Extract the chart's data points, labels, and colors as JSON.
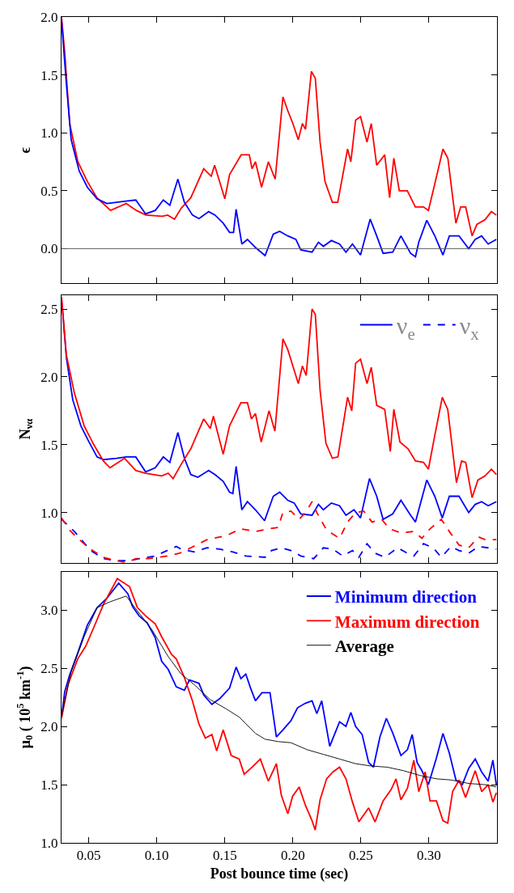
{
  "chart_data": [
    {
      "type": "line",
      "ylabel": "ϵ",
      "xlim": [
        0.03,
        0.35
      ],
      "ylim": [
        -0.3,
        2.0
      ],
      "tick_labels": "y",
      "xticks": [
        {
          "value": 0.05,
          "label": null
        },
        {
          "value": 0.1,
          "label": null
        },
        {
          "value": 0.15,
          "label": null
        },
        {
          "value": 0.2,
          "label": null
        },
        {
          "value": 0.25,
          "label": null
        },
        {
          "value": 0.3,
          "label": null
        }
      ],
      "yticks": [
        {
          "value": 0,
          "label": "0.0"
        },
        0.5,
        {
          "value": 1,
          "label": "1.0"
        },
        1.5,
        {
          "value": 2,
          "label": "2.0"
        }
      ],
      "ref_lines": [
        {
          "axis": "y",
          "value": 0,
          "color": "#606060"
        }
      ],
      "series": [
        {
          "color": "#ff0000",
          "x": [
            0.03,
            0.0324,
            0.036,
            0.042,
            0.049,
            0.056,
            0.066,
            0.0775,
            0.085,
            0.092,
            0.104,
            0.108,
            0.113,
            0.118,
            0.125,
            0.1345,
            0.14,
            0.1425,
            0.15,
            0.1535,
            0.162,
            0.168,
            0.17,
            0.1725,
            0.177,
            0.182,
            0.187,
            0.1927,
            0.1963,
            0.2,
            0.204,
            0.207,
            0.2093,
            0.2136,
            0.2165,
            0.22,
            0.2236,
            0.229,
            0.233,
            0.2402,
            0.2426,
            0.2461,
            0.2497,
            0.2545,
            0.2576,
            0.2616,
            0.2675,
            0.2711,
            0.2742,
            0.2782,
            0.2841,
            0.29,
            0.296,
            0.2996,
            0.3043,
            0.3103,
            0.3139,
            0.3198,
            0.3233,
            0.327,
            0.3317,
            0.3352,
            0.3412,
            0.3459,
            0.3495
          ],
          "values": [
            2.0,
            1.69,
            1.08,
            0.75,
            0.58,
            0.44,
            0.33,
            0.39,
            0.33,
            0.29,
            0.28,
            0.29,
            0.255,
            0.35,
            0.44,
            0.69,
            0.625,
            0.72,
            0.43,
            0.64,
            0.81,
            0.81,
            0.69,
            0.75,
            0.53,
            0.75,
            0.6,
            1.31,
            1.19,
            1.08,
            0.94,
            1.08,
            1.03,
            1.53,
            1.47,
            0.92,
            0.58,
            0.4,
            0.4,
            0.86,
            0.75,
            1.11,
            1.14,
            0.92,
            1.08,
            0.72,
            0.81,
            0.44,
            0.78,
            0.5,
            0.5,
            0.36,
            0.36,
            0.33,
            0.56,
            0.86,
            0.78,
            0.22,
            0.36,
            0.36,
            0.11,
            0.21,
            0.25,
            0.32,
            0.29
          ]
        },
        {
          "color": "#0000ff",
          "x": [
            0.03,
            0.0336,
            0.0371,
            0.043,
            0.049,
            0.0561,
            0.0633,
            0.0704,
            0.0775,
            0.0846,
            0.0918,
            0.0989,
            0.1048,
            0.1096,
            0.1155,
            0.1203,
            0.1262,
            0.131,
            0.1381,
            0.1428,
            0.1488,
            0.1535,
            0.1564,
            0.1583,
            0.1625,
            0.1666,
            0.1725,
            0.1796,
            0.1856,
            0.1903,
            0.1963,
            0.2022,
            0.2058,
            0.2141,
            0.2188,
            0.2224,
            0.2283,
            0.2343,
            0.239,
            0.2438,
            0.2497,
            0.2568,
            0.2616,
            0.2663,
            0.2734,
            0.2794,
            0.2865,
            0.2901,
            0.2925,
            0.2984,
            0.3043,
            0.3103,
            0.315,
            0.3221,
            0.3292,
            0.334,
            0.3387,
            0.3435,
            0.3495
          ],
          "values": [
            1.97,
            1.42,
            0.94,
            0.67,
            0.53,
            0.43,
            0.39,
            0.4,
            0.41,
            0.42,
            0.3,
            0.33,
            0.42,
            0.375,
            0.6,
            0.4,
            0.29,
            0.26,
            0.32,
            0.29,
            0.22,
            0.14,
            0.14,
            0.34,
            0.04,
            0.08,
            0.01,
            -0.06,
            0.125,
            0.15,
            0.11,
            0.08,
            -0.01,
            -0.03,
            0.055,
            0.02,
            0.07,
            0.04,
            -0.03,
            0.04,
            -0.055,
            0.255,
            0.11,
            -0.04,
            -0.03,
            0.11,
            -0.04,
            -0.07,
            0.055,
            0.245,
            0.11,
            -0.055,
            0.11,
            0.11,
            0.0,
            0.08,
            0.11,
            0.04,
            0.08
          ]
        }
      ]
    },
    {
      "type": "line",
      "ylabel": "N$_{να}$",
      "xlim": [
        0.03,
        0.35
      ],
      "ylim": [
        0.63,
        2.6
      ],
      "tick_labels": "y",
      "legend": "top right",
      "xticks": [
        {
          "value": 0.05,
          "label": null
        },
        {
          "value": 0.1,
          "label": null
        },
        {
          "value": 0.15,
          "label": null
        },
        {
          "value": 0.2,
          "label": null
        },
        {
          "value": 0.25,
          "label": null
        },
        {
          "value": 0.3,
          "label": null
        }
      ],
      "yticks": [
        {
          "value": 1,
          "label": "1.0"
        },
        1.5,
        {
          "value": 2,
          "label": "2.0"
        },
        2.5
      ],
      "series": [
        {
          "name": "ν$_{e}$",
          "color": "#0000ff",
          "line_style": "solid",
          "x": [
            0.03,
            0.0336,
            0.0383,
            0.0442,
            0.0502,
            0.0561,
            0.0608,
            0.0704,
            0.0775,
            0.0846,
            0.0918,
            0.0989,
            0.1048,
            0.1096,
            0.1155,
            0.1203,
            0.125,
            0.1302,
            0.1381,
            0.1428,
            0.1488,
            0.1535,
            0.1559,
            0.1583,
            0.1625,
            0.1666,
            0.1725,
            0.1792,
            0.1856,
            0.1903,
            0.1963,
            0.201,
            0.2058,
            0.2141,
            0.2188,
            0.2224,
            0.2283,
            0.2343,
            0.239,
            0.2449,
            0.2497,
            0.2563,
            0.2616,
            0.2663,
            0.2734,
            0.2794,
            0.2865,
            0.2901,
            0.2925,
            0.2984,
            0.3043,
            0.3098,
            0.315,
            0.3221,
            0.3292,
            0.334,
            0.3387,
            0.3435,
            0.3495
          ],
          "values": [
            2.58,
            2.14,
            1.83,
            1.64,
            1.52,
            1.41,
            1.39,
            1.4,
            1.41,
            1.41,
            1.3,
            1.33,
            1.41,
            1.37,
            1.59,
            1.4,
            1.28,
            1.26,
            1.31,
            1.28,
            1.23,
            1.15,
            1.14,
            1.34,
            1.02,
            1.08,
            1.02,
            0.94,
            1.12,
            1.15,
            1.09,
            1.07,
            0.99,
            0.98,
            1.06,
            1.02,
            1.07,
            1.05,
            0.98,
            1.02,
            0.96,
            1.25,
            1.12,
            0.95,
            0.99,
            1.09,
            0.98,
            0.93,
            1.02,
            1.24,
            1.12,
            0.96,
            1.12,
            1.12,
            1.0,
            1.06,
            1.08,
            1.05,
            1.08
          ]
        },
        {
          "color": "#ff0000",
          "line_style": "solid",
          "x": [
            0.03,
            0.0336,
            0.0395,
            0.0466,
            0.0537,
            0.0608,
            0.0656,
            0.0763,
            0.0846,
            0.0918,
            0.1036,
            0.1084,
            0.112,
            0.1179,
            0.125,
            0.1345,
            0.1393,
            0.1416,
            0.1488,
            0.1535,
            0.1618,
            0.1666,
            0.1696,
            0.1725,
            0.1767,
            0.1825,
            0.1868,
            0.1927,
            0.1963,
            0.2,
            0.204,
            0.207,
            0.2098,
            0.2141,
            0.2165,
            0.22,
            0.2243,
            0.229,
            0.2331,
            0.2402,
            0.2433,
            0.2461,
            0.2497,
            0.2545,
            0.2576,
            0.2616,
            0.2675,
            0.2716,
            0.2742,
            0.2787,
            0.2846,
            0.2901,
            0.296,
            0.2996,
            0.3043,
            0.3098,
            0.3138,
            0.3202,
            0.324,
            0.327,
            0.3317,
            0.336,
            0.3412,
            0.3459,
            0.3495
          ],
          "values": [
            2.59,
            2.16,
            1.88,
            1.64,
            1.5,
            1.38,
            1.33,
            1.4,
            1.31,
            1.29,
            1.27,
            1.29,
            1.25,
            1.355,
            1.47,
            1.69,
            1.62,
            1.71,
            1.43,
            1.64,
            1.81,
            1.81,
            1.69,
            1.73,
            1.52,
            1.75,
            1.6,
            2.28,
            2.2,
            2.08,
            1.95,
            2.08,
            2.01,
            2.5,
            2.46,
            1.9,
            1.51,
            1.4,
            1.41,
            1.85,
            1.75,
            2.1,
            2.13,
            1.95,
            2.07,
            1.79,
            1.76,
            1.45,
            1.76,
            1.52,
            1.47,
            1.38,
            1.37,
            1.32,
            1.57,
            1.85,
            1.76,
            1.22,
            1.38,
            1.37,
            1.11,
            1.24,
            1.27,
            1.32,
            1.28
          ]
        },
        {
          "name": "ν$_{x}$",
          "color": "#0000ff",
          "line_style": "dashed",
          "x": [
            0.03,
            0.0395,
            0.0514,
            0.0608,
            0.0704,
            0.0799,
            0.087,
            0.0989,
            0.1143,
            0.1179,
            0.1274,
            0.1369,
            0.1464,
            0.1559,
            0.1654,
            0.1796,
            0.1843,
            0.1915,
            0.1986,
            0.2058,
            0.2153,
            0.2224,
            0.2295,
            0.2366,
            0.2438,
            0.2485,
            0.2545,
            0.2604,
            0.2675,
            0.277,
            0.2841,
            0.2889,
            0.296,
            0.3031,
            0.3091,
            0.3162,
            0.3221,
            0.3292,
            0.3364,
            0.3435,
            0.3495
          ],
          "values": [
            0.95,
            0.86,
            0.72,
            0.66,
            0.645,
            0.645,
            0.66,
            0.68,
            0.75,
            0.73,
            0.71,
            0.74,
            0.73,
            0.71,
            0.68,
            0.67,
            0.72,
            0.74,
            0.72,
            0.68,
            0.66,
            0.74,
            0.73,
            0.68,
            0.72,
            0.67,
            0.77,
            0.7,
            0.67,
            0.74,
            0.7,
            0.68,
            0.77,
            0.74,
            0.67,
            0.75,
            0.72,
            0.7,
            0.75,
            0.74,
            0.73
          ]
        },
        {
          "color": "#ff0000",
          "line_style": "dashed",
          "x": [
            0.03,
            0.036,
            0.0419,
            0.0514,
            0.0608,
            0.0704,
            0.0775,
            0.0846,
            0.0941,
            0.1084,
            0.1167,
            0.125,
            0.1369,
            0.1511,
            0.1618,
            0.1725,
            0.182,
            0.1891,
            0.1927,
            0.1986,
            0.2046,
            0.2093,
            0.2141,
            0.2176,
            0.2248,
            0.2343,
            0.2402,
            0.2461,
            0.2521,
            0.2581,
            0.2652,
            0.2711,
            0.2794,
            0.2889,
            0.2948,
            0.3008,
            0.3091,
            0.315,
            0.3221,
            0.3292,
            0.3364,
            0.3412,
            0.3495
          ],
          "values": [
            0.96,
            0.87,
            0.81,
            0.73,
            0.67,
            0.645,
            0.63,
            0.66,
            0.66,
            0.68,
            0.7,
            0.74,
            0.8,
            0.83,
            0.88,
            0.86,
            0.88,
            0.89,
            1.0,
            1.01,
            0.95,
            1.0,
            1.08,
            1.0,
            0.87,
            0.81,
            0.93,
            1.0,
            1.01,
            0.93,
            0.95,
            0.88,
            0.85,
            0.86,
            0.81,
            0.88,
            0.95,
            0.86,
            0.76,
            0.74,
            0.82,
            0.8,
            0.8
          ]
        }
      ]
    },
    {
      "type": "line",
      "xlabel": "Post bounce time (sec)",
      "ylabel": "μ$_{0}$ ( 10$^{5}$ km$^{-1}$)",
      "xlim": [
        0.03,
        0.35
      ],
      "ylim": [
        1.0,
        3.33
      ],
      "legend": "top right",
      "xticks": [
        0.05,
        {
          "value": 0.1,
          "label": "0.10"
        },
        0.15,
        {
          "value": 0.2,
          "label": "0.20"
        },
        0.25,
        {
          "value": 0.3,
          "label": "0.30"
        }
      ],
      "yticks": [
        {
          "value": 1,
          "label": "1.0"
        },
        1.5,
        {
          "value": 2,
          "label": "2.0"
        },
        2.5,
        {
          "value": 3,
          "label": "3.0"
        }
      ],
      "series": [
        {
          "name": "Minimum direction",
          "color": "#0000ff",
          "x": [
            0.03,
            0.0324,
            0.0359,
            0.0419,
            0.049,
            0.0561,
            0.0633,
            0.072,
            0.0787,
            0.0822,
            0.087,
            0.093,
            0.0989,
            0.1036,
            0.1084,
            0.1143,
            0.1203,
            0.124,
            0.131,
            0.1345,
            0.1405,
            0.1464,
            0.1535,
            0.1583,
            0.1618,
            0.1654,
            0.1689,
            0.1725,
            0.1773,
            0.1832,
            0.1879,
            0.1927,
            0.1986,
            0.2034,
            0.2093,
            0.2141,
            0.2176,
            0.2212,
            0.2271,
            0.2343,
            0.239,
            0.2426,
            0.2461,
            0.2509,
            0.2557,
            0.2592,
            0.264,
            0.2687,
            0.2735,
            0.2794,
            0.2842,
            0.2877,
            0.2913,
            0.2948,
            0.2996,
            0.3055,
            0.3103,
            0.315,
            0.3198,
            0.3245,
            0.3292,
            0.334,
            0.3387,
            0.3435,
            0.347,
            0.3495
          ],
          "values": [
            2.08,
            2.3,
            2.44,
            2.63,
            2.87,
            3.02,
            3.1,
            3.23,
            3.14,
            3.03,
            2.95,
            2.89,
            2.76,
            2.56,
            2.49,
            2.34,
            2.31,
            2.4,
            2.37,
            2.27,
            2.19,
            2.24,
            2.33,
            2.51,
            2.41,
            2.45,
            2.33,
            2.22,
            2.29,
            2.29,
            1.91,
            1.97,
            2.05,
            2.16,
            2.2,
            2.22,
            2.11,
            2.22,
            1.83,
            2.04,
            2.0,
            2.12,
            2.0,
            1.93,
            1.69,
            1.65,
            1.91,
            2.07,
            1.94,
            1.75,
            1.8,
            1.93,
            1.69,
            1.62,
            1.5,
            1.73,
            1.94,
            1.77,
            1.54,
            1.5,
            1.64,
            1.72,
            1.61,
            1.53,
            1.71,
            1.5
          ]
        },
        {
          "name": "Maximum direction",
          "color": "#ff0000",
          "x": [
            0.03,
            0.0348,
            0.0419,
            0.0478,
            0.0537,
            0.0609,
            0.071,
            0.08,
            0.0858,
            0.0918,
            0.0989,
            0.1036,
            0.1108,
            0.1143,
            0.1203,
            0.1262,
            0.131,
            0.1357,
            0.1405,
            0.144,
            0.1488,
            0.1547,
            0.1606,
            0.1642,
            0.1701,
            0.1761,
            0.182,
            0.1879,
            0.1915,
            0.1963,
            0.1998,
            0.2046,
            0.2093,
            0.2141,
            0.2164,
            0.22,
            0.2248,
            0.2295,
            0.2343,
            0.239,
            0.2438,
            0.2485,
            0.2557,
            0.2604,
            0.2663,
            0.2723,
            0.2758,
            0.2794,
            0.2842,
            0.2889,
            0.2925,
            0.2972,
            0.3008,
            0.3055,
            0.3103,
            0.3138,
            0.3174,
            0.3222,
            0.3269,
            0.334,
            0.3388,
            0.3435,
            0.347,
            0.3495
          ],
          "values": [
            2.07,
            2.36,
            2.58,
            2.69,
            2.85,
            3.05,
            3.27,
            3.2,
            3.02,
            2.95,
            2.88,
            2.77,
            2.62,
            2.58,
            2.42,
            2.22,
            2.02,
            1.9,
            1.93,
            1.79,
            1.97,
            1.75,
            1.72,
            1.59,
            1.65,
            1.72,
            1.53,
            1.68,
            1.41,
            1.25,
            1.4,
            1.48,
            1.32,
            1.19,
            1.11,
            1.37,
            1.55,
            1.61,
            1.65,
            1.55,
            1.35,
            1.18,
            1.3,
            1.18,
            1.36,
            1.46,
            1.55,
            1.37,
            1.47,
            1.71,
            1.44,
            1.61,
            1.36,
            1.36,
            1.19,
            1.17,
            1.44,
            1.54,
            1.39,
            1.62,
            1.44,
            1.5,
            1.35,
            1.43
          ]
        },
        {
          "name": "Average",
          "color": "#000000",
          "x": [
            0.03,
            0.0371,
            0.0466,
            0.0561,
            0.0656,
            0.0775,
            0.0846,
            0.0965,
            0.1084,
            0.1179,
            0.1274,
            0.1393,
            0.1511,
            0.1606,
            0.1725,
            0.1796,
            0.1891,
            0.1986,
            0.2105,
            0.2224,
            0.2343,
            0.2461,
            0.2575,
            0.2694,
            0.2812,
            0.2931,
            0.3055,
            0.3164,
            0.3292,
            0.3411,
            0.3495
          ],
          "values": [
            2.09,
            2.47,
            2.77,
            3.02,
            3.07,
            3.12,
            3.01,
            2.83,
            2.6,
            2.45,
            2.36,
            2.23,
            2.15,
            2.08,
            1.94,
            1.89,
            1.87,
            1.86,
            1.8,
            1.76,
            1.72,
            1.68,
            1.66,
            1.65,
            1.62,
            1.58,
            1.55,
            1.54,
            1.51,
            1.5,
            1.48
          ]
        }
      ]
    }
  ]
}
